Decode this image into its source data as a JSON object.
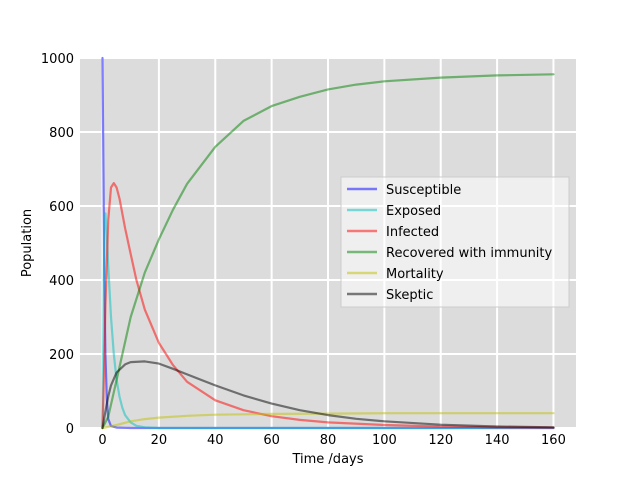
{
  "chart_data": {
    "type": "line",
    "title": "",
    "xlabel": "Time /days",
    "ylabel": "Population",
    "xlim": [
      -8,
      168
    ],
    "ylim": [
      0,
      1000
    ],
    "xticks": [
      "0",
      "20",
      "40",
      "60",
      "80",
      "100",
      "120",
      "140",
      "160"
    ],
    "yticks": [
      "0",
      "200",
      "400",
      "600",
      "800",
      "1000"
    ],
    "grid": true,
    "legend_position": "center-right",
    "series": [
      {
        "name": "Susceptible",
        "color": "#0000ff",
        "x": [
          0,
          0.3,
          0.6,
          1,
          1.5,
          2,
          3,
          5,
          10,
          160
        ],
        "y": [
          1000,
          700,
          420,
          200,
          80,
          25,
          5,
          1,
          0,
          0
        ]
      },
      {
        "name": "Exposed",
        "color": "#00bfbf",
        "x": [
          0,
          0.3,
          0.6,
          1,
          1.5,
          2,
          3,
          4,
          5,
          6,
          7,
          8,
          10,
          12,
          15,
          20,
          160
        ],
        "y": [
          0,
          300,
          560,
          580,
          520,
          440,
          300,
          200,
          130,
          85,
          55,
          35,
          15,
          6,
          2,
          0,
          0
        ]
      },
      {
        "name": "Infected",
        "color": "#ff0000",
        "x": [
          0,
          0.5,
          1,
          2,
          3,
          4,
          5,
          6,
          8,
          10,
          12,
          15,
          20,
          25,
          30,
          40,
          50,
          60,
          70,
          80,
          100,
          120,
          140,
          160
        ],
        "y": [
          0,
          150,
          330,
          560,
          650,
          662,
          650,
          620,
          540,
          470,
          400,
          320,
          230,
          170,
          125,
          75,
          48,
          32,
          22,
          15,
          8,
          4,
          2,
          1
        ]
      },
      {
        "name": "Recovered with immunity",
        "color": "#008000",
        "x": [
          0,
          2,
          5,
          10,
          15,
          20,
          25,
          30,
          40,
          50,
          60,
          70,
          80,
          90,
          100,
          120,
          140,
          160
        ],
        "y": [
          0,
          30,
          130,
          300,
          420,
          510,
          590,
          660,
          760,
          830,
          870,
          895,
          915,
          928,
          937,
          947,
          953,
          956
        ]
      },
      {
        "name": "Mortality",
        "color": "#bfbf00",
        "x": [
          0,
          2,
          5,
          10,
          15,
          20,
          30,
          40,
          50,
          60,
          80,
          100,
          120,
          140,
          160
        ],
        "y": [
          0,
          3,
          8,
          18,
          24,
          28,
          33,
          36,
          37,
          38,
          39,
          40,
          40,
          40,
          40
        ]
      },
      {
        "name": "Skeptic",
        "color": "#000000",
        "x": [
          0,
          1,
          2,
          3,
          5,
          8,
          10,
          15,
          20,
          25,
          30,
          40,
          50,
          60,
          70,
          80,
          90,
          100,
          120,
          140,
          160
        ],
        "y": [
          0,
          45,
          85,
          115,
          150,
          172,
          178,
          180,
          174,
          160,
          145,
          115,
          88,
          66,
          48,
          35,
          25,
          18,
          9,
          4,
          2
        ]
      }
    ]
  }
}
